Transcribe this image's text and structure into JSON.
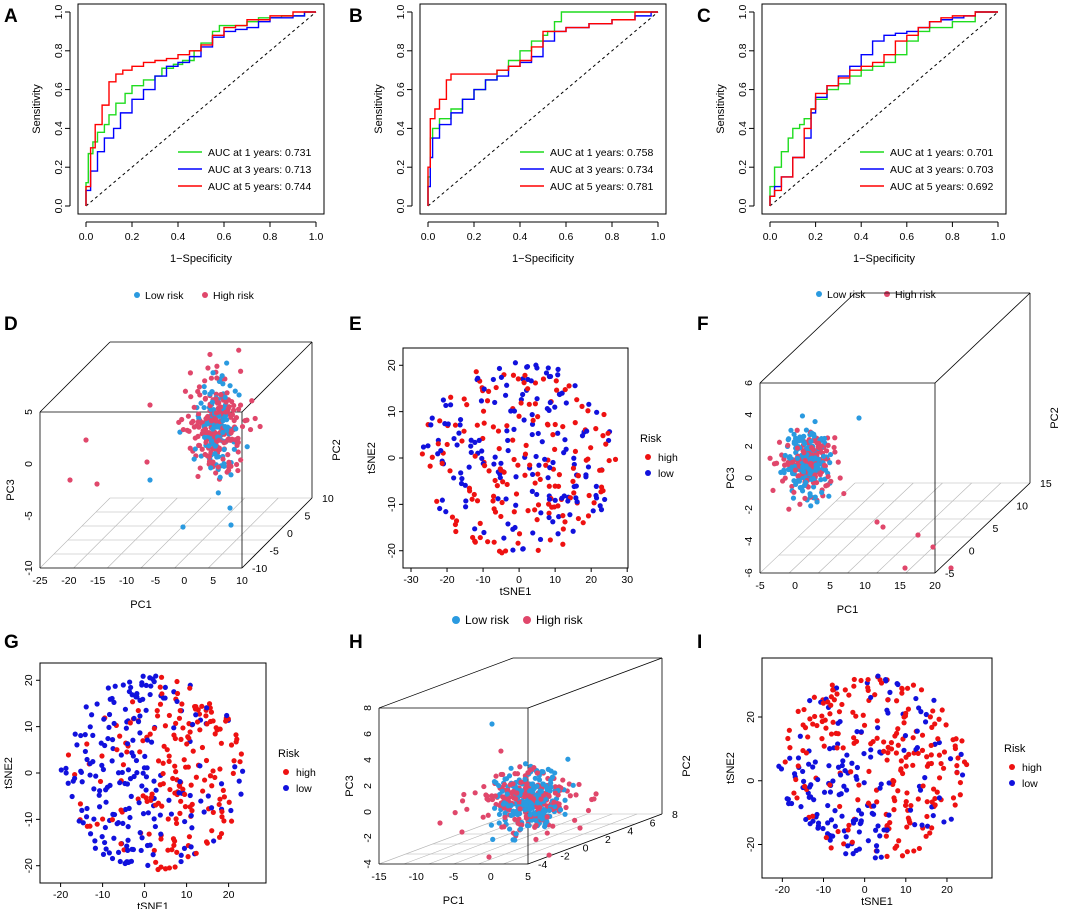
{
  "colors": {
    "green": "#1fdc1f",
    "blue": "#0000ff",
    "red": "#ff0000",
    "low_risk": "#2a9ae0",
    "high_risk": "#e0476b",
    "high": "#ee1111",
    "low": "#1111dd"
  },
  "panel_letters": [
    "A",
    "B",
    "C",
    "D",
    "E",
    "F",
    "G",
    "H",
    "I"
  ],
  "chart_data": [
    {
      "panel": "A",
      "type": "line",
      "xlabel": "1−Specificity",
      "ylabel": "Sensitivity",
      "xlim": [
        0,
        1
      ],
      "ylim": [
        0,
        1
      ],
      "ticks": [
        "0.0",
        "0.2",
        "0.4",
        "0.6",
        "0.8",
        "1.0"
      ],
      "series": [
        {
          "name": "AUC at 1 years: 0.731",
          "color": "green",
          "x": [
            0,
            0.01,
            0.03,
            0.05,
            0.08,
            0.1,
            0.13,
            0.17,
            0.2,
            0.25,
            0.3,
            0.33,
            0.38,
            0.42,
            0.47,
            0.5,
            0.55,
            0.58,
            0.62,
            0.7,
            0.75,
            0.85,
            0.95,
            1
          ],
          "y": [
            0,
            0.12,
            0.27,
            0.33,
            0.38,
            0.42,
            0.47,
            0.53,
            0.58,
            0.62,
            0.65,
            0.67,
            0.71,
            0.73,
            0.75,
            0.8,
            0.84,
            0.9,
            0.93,
            0.93,
            0.95,
            0.97,
            0.98,
            1
          ]
        },
        {
          "name": "AUC at 3 years: 0.713",
          "color": "blue",
          "x": [
            0,
            0.02,
            0.05,
            0.08,
            0.12,
            0.15,
            0.2,
            0.25,
            0.3,
            0.35,
            0.4,
            0.45,
            0.5,
            0.55,
            0.6,
            0.65,
            0.7,
            0.75,
            0.8,
            0.9,
            0.95,
            1
          ],
          "y": [
            0,
            0.08,
            0.18,
            0.28,
            0.35,
            0.4,
            0.48,
            0.55,
            0.6,
            0.67,
            0.72,
            0.74,
            0.77,
            0.82,
            0.87,
            0.9,
            0.91,
            0.92,
            0.95,
            0.97,
            0.98,
            1
          ]
        },
        {
          "name": "AUC at 5 years: 0.744",
          "color": "red",
          "x": [
            0,
            0.02,
            0.04,
            0.07,
            0.1,
            0.13,
            0.16,
            0.2,
            0.25,
            0.3,
            0.35,
            0.4,
            0.45,
            0.5,
            0.55,
            0.6,
            0.65,
            0.7,
            0.8,
            0.9,
            1
          ],
          "y": [
            0,
            0.1,
            0.3,
            0.42,
            0.52,
            0.64,
            0.68,
            0.7,
            0.72,
            0.74,
            0.75,
            0.76,
            0.78,
            0.8,
            0.83,
            0.88,
            0.92,
            0.93,
            0.96,
            0.98,
            1
          ]
        }
      ]
    },
    {
      "panel": "B",
      "type": "line",
      "xlabel": "1−Specificity",
      "ylabel": "Sensitivity",
      "xlim": [
        0,
        1
      ],
      "ylim": [
        0,
        1
      ],
      "ticks": [
        "0.0",
        "0.2",
        "0.4",
        "0.6",
        "0.8",
        "1.0"
      ],
      "series": [
        {
          "name": "AUC at 1 years: 0.758",
          "color": "green",
          "x": [
            0,
            0.01,
            0.02,
            0.05,
            0.1,
            0.15,
            0.2,
            0.25,
            0.3,
            0.35,
            0.4,
            0.45,
            0.5,
            0.52,
            0.55,
            0.58,
            0.6,
            0.7,
            0.8,
            0.9,
            1
          ],
          "y": [
            0,
            0.15,
            0.35,
            0.4,
            0.45,
            0.5,
            0.55,
            0.6,
            0.65,
            0.7,
            0.75,
            0.8,
            0.85,
            0.88,
            0.9,
            0.95,
            1,
            1,
            1,
            1,
            1
          ]
        },
        {
          "name": "AUC at 3 years: 0.734",
          "color": "blue",
          "x": [
            0,
            0.01,
            0.02,
            0.05,
            0.1,
            0.15,
            0.2,
            0.25,
            0.3,
            0.35,
            0.4,
            0.45,
            0.5,
            0.55,
            0.6,
            0.7,
            0.8,
            0.9,
            0.97,
            1
          ],
          "y": [
            0,
            0.1,
            0.25,
            0.35,
            0.42,
            0.48,
            0.55,
            0.6,
            0.65,
            0.67,
            0.72,
            0.74,
            0.77,
            0.85,
            0.9,
            0.92,
            0.94,
            0.96,
            0.98,
            1
          ]
        },
        {
          "name": "AUC at 5 years: 0.781",
          "color": "red",
          "x": [
            0,
            0.01,
            0.03,
            0.05,
            0.08,
            0.1,
            0.13,
            0.16,
            0.2,
            0.3,
            0.35,
            0.4,
            0.45,
            0.5,
            0.6,
            0.7,
            0.8,
            0.9,
            0.96,
            1
          ],
          "y": [
            0,
            0.2,
            0.45,
            0.5,
            0.55,
            0.65,
            0.68,
            0.68,
            0.68,
            0.68,
            0.7,
            0.72,
            0.75,
            0.82,
            0.9,
            0.92,
            0.94,
            0.96,
            1,
            1
          ]
        }
      ]
    },
    {
      "panel": "C",
      "type": "line",
      "xlabel": "1−Specificity",
      "ylabel": "Sensitivity",
      "xlim": [
        0,
        1
      ],
      "ylim": [
        0,
        1
      ],
      "ticks": [
        "0.0",
        "0.2",
        "0.4",
        "0.6",
        "0.8",
        "1.0"
      ],
      "series": [
        {
          "name": "AUC at 1 years: 0.701",
          "color": "green",
          "x": [
            0,
            0.02,
            0.05,
            0.08,
            0.1,
            0.13,
            0.15,
            0.18,
            0.2,
            0.25,
            0.3,
            0.35,
            0.4,
            0.45,
            0.5,
            0.55,
            0.6,
            0.65,
            0.7,
            0.8,
            0.9,
            1
          ],
          "y": [
            0,
            0.1,
            0.2,
            0.28,
            0.35,
            0.4,
            0.42,
            0.45,
            0.5,
            0.55,
            0.6,
            0.63,
            0.67,
            0.7,
            0.72,
            0.74,
            0.78,
            0.85,
            0.9,
            0.92,
            0.95,
            1
          ]
        },
        {
          "name": "AUC at 3 years: 0.703",
          "color": "blue",
          "x": [
            0,
            0.02,
            0.05,
            0.1,
            0.15,
            0.18,
            0.2,
            0.25,
            0.3,
            0.35,
            0.4,
            0.45,
            0.5,
            0.55,
            0.6,
            0.65,
            0.7,
            0.75,
            0.8,
            0.85,
            0.9,
            1
          ],
          "y": [
            0,
            0.05,
            0.1,
            0.15,
            0.25,
            0.35,
            0.48,
            0.56,
            0.62,
            0.67,
            0.72,
            0.78,
            0.85,
            0.88,
            0.89,
            0.9,
            0.92,
            0.95,
            0.96,
            0.97,
            0.98,
            1
          ]
        },
        {
          "name": "AUC at 5 years: 0.692",
          "color": "red",
          "x": [
            0,
            0.02,
            0.05,
            0.1,
            0.15,
            0.18,
            0.2,
            0.25,
            0.3,
            0.35,
            0.4,
            0.45,
            0.5,
            0.55,
            0.6,
            0.65,
            0.7,
            0.75,
            0.8,
            0.9,
            1
          ],
          "y": [
            0,
            0.05,
            0.08,
            0.15,
            0.25,
            0.4,
            0.5,
            0.58,
            0.62,
            0.66,
            0.7,
            0.72,
            0.74,
            0.78,
            0.85,
            0.88,
            0.92,
            0.95,
            0.97,
            0.98,
            1
          ]
        }
      ]
    },
    {
      "panel": "D",
      "type": "scatter",
      "legend": [
        "Low risk",
        "High risk"
      ],
      "xlabel": "PC1",
      "ylabel": "PC3",
      "zlabel": "PC2",
      "x_ticks": [
        "-25",
        "-20",
        "-15",
        "-10",
        "-5",
        "0",
        "5",
        "10"
      ],
      "y_ticks": [
        "-10",
        "-5",
        "0",
        "5"
      ],
      "z_ticks": [
        "-10",
        "-5",
        "0",
        "5",
        "10"
      ]
    },
    {
      "panel": "E",
      "type": "scatter",
      "legend_title": "Risk",
      "legend": [
        "high",
        "low"
      ],
      "xlabel": "tSNE1",
      "ylabel": "tSNE2",
      "x_ticks": [
        "-30",
        "-20",
        "-10",
        "0",
        "10",
        "20",
        "30"
      ],
      "y_ticks": [
        "-20",
        "-10",
        "0",
        "10",
        "20"
      ]
    },
    {
      "panel": "F",
      "type": "scatter",
      "legend": [
        "Low risk",
        "High risk"
      ],
      "xlabel": "PC1",
      "ylabel": "PC3",
      "zlabel": "PC2",
      "x_ticks": [
        "-5",
        "0",
        "5",
        "10",
        "15",
        "20"
      ],
      "y_ticks": [
        "-6",
        "-4",
        "-2",
        "0",
        "2",
        "4",
        "6"
      ],
      "z_ticks": [
        "-5",
        "0",
        "5",
        "10",
        "15"
      ]
    },
    {
      "panel": "G",
      "type": "scatter",
      "legend_title": "Risk",
      "legend": [
        "high",
        "low"
      ],
      "xlabel": "tSNE1",
      "ylabel": "tSNE2",
      "x_ticks": [
        "-20",
        "-10",
        "0",
        "10",
        "20"
      ],
      "y_ticks": [
        "-20",
        "-10",
        "0",
        "10",
        "20"
      ]
    },
    {
      "panel": "H",
      "type": "scatter",
      "legend": [
        "Low risk",
        "High risk"
      ],
      "xlabel": "PC1",
      "ylabel": "PC3",
      "zlabel": "PC2",
      "x_ticks": [
        "-15",
        "-10",
        "-5",
        "0",
        "5"
      ],
      "y_ticks": [
        "-4",
        "-2",
        "0",
        "2",
        "4",
        "6",
        "8"
      ],
      "z_ticks": [
        "-4",
        "-2",
        "0",
        "2",
        "4",
        "6",
        "8"
      ]
    },
    {
      "panel": "I",
      "type": "scatter",
      "legend_title": "Risk",
      "legend": [
        "high",
        "low"
      ],
      "xlabel": "tSNE1",
      "ylabel": "tSNE2",
      "x_ticks": [
        "-20",
        "-10",
        "0",
        "10",
        "20"
      ],
      "y_ticks": [
        "-20",
        "0",
        "20"
      ]
    }
  ]
}
